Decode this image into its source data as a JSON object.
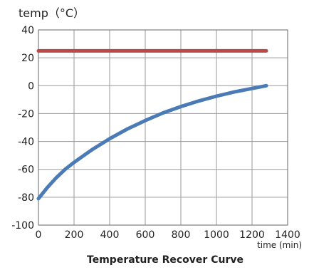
{
  "chart_data": {
    "type": "line",
    "title": "Temperature Recover Curve",
    "xlabel": "time (min)",
    "ylabel": "temp（°C）",
    "xlim": [
      0,
      1400
    ],
    "ylim": [
      -100,
      40
    ],
    "x_ticks": [
      0,
      200,
      400,
      600,
      800,
      1000,
      1200,
      1400
    ],
    "y_ticks": [
      40,
      20,
      0,
      -20,
      -40,
      -60,
      -80,
      -100
    ],
    "x_tick_labels": [
      "0",
      "200",
      "400",
      "600",
      "800",
      "1000",
      "1200",
      "1400"
    ],
    "y_tick_labels": [
      "40",
      "20",
      "0",
      "-20",
      "-40",
      "-60",
      "-80",
      "-100"
    ],
    "grid": true,
    "legend": "none",
    "series": [
      {
        "color": "#b94a48",
        "x": [
          0,
          1280
        ],
        "y": [
          25,
          25
        ]
      },
      {
        "color": "#4a7bb7",
        "x": [
          0,
          50,
          100,
          150,
          200,
          300,
          400,
          500,
          600,
          700,
          800,
          900,
          1000,
          1100,
          1200,
          1280
        ],
        "y": [
          -81,
          -73,
          -66,
          -60,
          -55,
          -46,
          -38,
          -31,
          -25,
          -19.5,
          -15,
          -11,
          -7.5,
          -4.5,
          -2,
          0
        ]
      }
    ]
  }
}
